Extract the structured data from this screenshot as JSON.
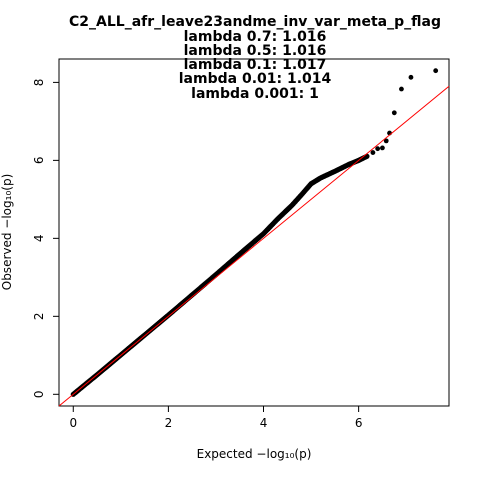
{
  "chart_data": {
    "type": "scatter",
    "title": "C2_ALL_afr_leave23andme_inv_var_meta_p_flag",
    "subtitle_lines": [
      "lambda 0.7: 1.016",
      "lambda 0.5: 1.016",
      "lambda 0.1: 1.017",
      "lambda 0.01: 1.014",
      "lambda 0.001: 1"
    ],
    "xlabel": "Expected  −log₁₀(p)",
    "ylabel": "Observed  −log₁₀(p)",
    "xlim": [
      -0.3,
      7.9
    ],
    "ylim": [
      -0.3,
      8.6
    ],
    "x_ticks": [
      0,
      2,
      4,
      6
    ],
    "y_ticks": [
      0,
      2,
      4,
      6,
      8
    ],
    "grid": false,
    "reference_line": {
      "slope": 1,
      "intercept": 0,
      "color": "#ff0000"
    },
    "point_color": "#000000",
    "curve": [
      [
        0,
        0
      ],
      [
        0.5,
        0.5
      ],
      [
        1,
        1.01
      ],
      [
        1.5,
        1.52
      ],
      [
        2,
        2.03
      ],
      [
        2.5,
        2.55
      ],
      [
        3,
        3.07
      ],
      [
        3.5,
        3.6
      ],
      [
        4,
        4.12
      ],
      [
        4.3,
        4.5
      ],
      [
        4.6,
        4.85
      ],
      [
        4.8,
        5.12
      ],
      [
        5,
        5.4
      ],
      [
        5.2,
        5.55
      ],
      [
        5.5,
        5.72
      ],
      [
        5.8,
        5.9
      ],
      [
        6,
        6.0
      ],
      [
        6.2,
        6.12
      ]
    ],
    "tail_points": [
      [
        6.3,
        6.2
      ],
      [
        6.4,
        6.3
      ],
      [
        6.5,
        6.32
      ],
      [
        6.58,
        6.5
      ],
      [
        6.65,
        6.7
      ],
      [
        6.75,
        7.22
      ],
      [
        6.9,
        7.83
      ],
      [
        7.1,
        8.13
      ],
      [
        7.62,
        8.3
      ]
    ]
  }
}
